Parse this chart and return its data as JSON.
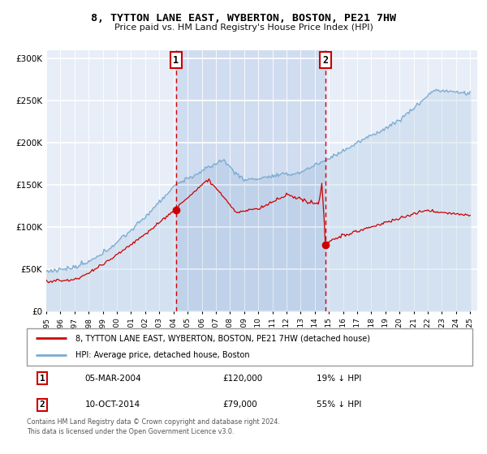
{
  "title": "8, TYTTON LANE EAST, WYBERTON, BOSTON, PE21 7HW",
  "subtitle": "Price paid vs. HM Land Registry's House Price Index (HPI)",
  "legend_property": "8, TYTTON LANE EAST, WYBERTON, BOSTON, PE21 7HW (detached house)",
  "legend_hpi": "HPI: Average price, detached house, Boston",
  "sale1_date": "05-MAR-2004",
  "sale1_price": "£120,000",
  "sale1_hpi": "19% ↓ HPI",
  "sale1_year": 2004.17,
  "sale1_value": 120000,
  "sale2_date": "10-OCT-2014",
  "sale2_price": "£79,000",
  "sale2_hpi": "55% ↓ HPI",
  "sale2_year": 2014.77,
  "sale2_value": 79000,
  "ylim": [
    0,
    310000
  ],
  "xlim_start": 1995.0,
  "xlim_end": 2025.5,
  "background_color": "#ffffff",
  "plot_bg_color": "#e8eef8",
  "shade_color": "#d0dcf0",
  "grid_color": "#ffffff",
  "red_color": "#cc0000",
  "blue_color": "#7aaad0",
  "dashed_color": "#cc0000",
  "copyright_text": "Contains HM Land Registry data © Crown copyright and database right 2024.\nThis data is licensed under the Open Government Licence v3.0."
}
